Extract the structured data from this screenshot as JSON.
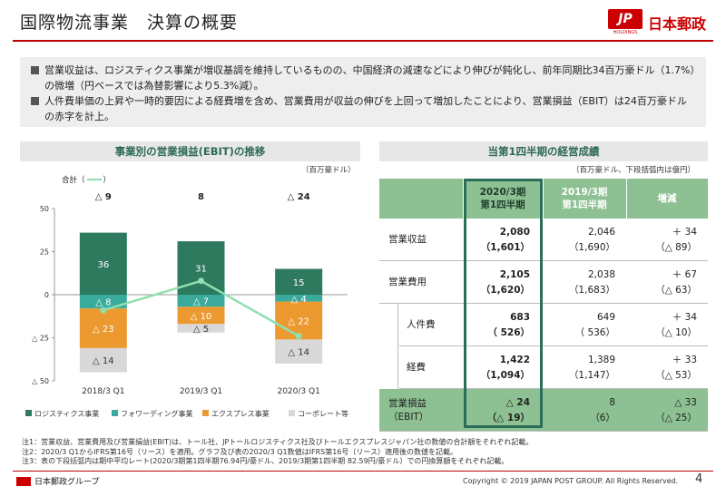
{
  "header": {
    "title": "国際物流事業　決算の概要",
    "logo_mark": "JP",
    "logo_sub": "HOLDINGS",
    "logo_text": "日本郵政"
  },
  "summary": [
    "営業収益は、ロジスティクス事業が増収基調を維持しているものの、中国経済の減速などにより伸びが鈍化し、前年同期比34百万豪ドル（1.7%）の微増（円ベースでは為替影響により5.3%減）。",
    "人件費単価の上昇や一時的要因による経費増を含め、営業費用が収益の伸びを上回って増加したことにより、営業損益（EBIT）は24百万豪ドルの赤字を計上。"
  ],
  "left_panel": {
    "title": "事業別の営業損益(EBIT)の推移",
    "unit": "（百万豪ドル）",
    "total_legend": "合計（",
    "total_legend_end": "）"
  },
  "chart_data": {
    "type": "bar",
    "stacked": true,
    "categories": [
      "2018/3 Q1",
      "2019/3 Q1",
      "2020/3 Q1"
    ],
    "series": [
      {
        "name": "ロジスティクス事業",
        "values": [
          36,
          31,
          15
        ],
        "labels": [
          "36",
          "31",
          "15"
        ],
        "color": "#2e7a5f"
      },
      {
        "name": "フォワーディング事業",
        "values": [
          -8,
          -7,
          -4
        ],
        "labels": [
          "△ 8",
          "△ 7",
          "△ 4"
        ],
        "color": "#3aaa9c"
      },
      {
        "name": "エクスプレス事業",
        "values": [
          -23,
          -10,
          -22
        ],
        "labels": [
          "△ 23",
          "△ 10",
          "△ 22"
        ],
        "color": "#ec9a30"
      },
      {
        "name": "コーポレート等",
        "values": [
          -14,
          -5,
          -14
        ],
        "labels": [
          "△ 14",
          "△ 5",
          "△ 14"
        ],
        "color": "#d8d8d8"
      }
    ],
    "total": {
      "name": "合計",
      "values": [
        -9,
        8,
        -24
      ],
      "labels": [
        "△ 9",
        "8",
        "△ 24"
      ],
      "color": "#8fe0b0"
    },
    "ylim": [
      -50,
      50
    ],
    "yticks": [
      50,
      25,
      0,
      -25,
      -50
    ],
    "ytick_labels": [
      "50",
      "25",
      "0",
      "△ 25",
      "△ 50"
    ]
  },
  "right_panel": {
    "title": "当第1四半期の経営成績",
    "unit": "（百万豪ドル、下段括弧内は億円）",
    "columns": [
      "2020/3期\n第1四半期",
      "2019/3期\n第1四半期",
      "増減"
    ],
    "rows": [
      {
        "label": "営業収益",
        "cur": "2,080",
        "cur_yen": "（1,601）",
        "prev": "2,046",
        "prev_yen": "（1,690）",
        "chg": "＋ 34",
        "chg_yen": "（△ 89）"
      },
      {
        "label": "営業費用",
        "cur": "2,105",
        "cur_yen": "（1,620）",
        "prev": "2,038",
        "prev_yen": "（1,683）",
        "chg": "＋ 67",
        "chg_yen": "（△ 63）"
      },
      {
        "label": "人件費",
        "cur": "683",
        "cur_yen": "（ 526）",
        "prev": "649",
        "prev_yen": "（ 536）",
        "chg": "＋ 34",
        "chg_yen": "（△ 10）"
      },
      {
        "label": "経費",
        "cur": "1,422",
        "cur_yen": "（1,094）",
        "prev": "1,389",
        "prev_yen": "（1,147）",
        "chg": "＋ 33",
        "chg_yen": "（△ 53）"
      },
      {
        "label": "営業損益\n（EBIT）",
        "cur": "△ 24",
        "cur_yen": "（△ 19）",
        "prev": "8",
        "prev_yen": "（6）",
        "chg": "△ 33",
        "chg_yen": "（△ 25）"
      }
    ]
  },
  "footnotes": [
    "注1：営業収益、営業費用及び営業損益(EBIT)は、トール社、JPトールロジスティクス社及びトールエクスプレスジャパン社の数値の合計額をそれぞれ記載。",
    "注2：2020/3 Q1からIFRS第16号（リース）を適用。グラフ及び表の2020/3 Q1数値はIFRS第16号（リース）適用後の数値を記載。",
    "注3：表の下段括弧内は期中平均レート(2020/3期第1四半期76.94円/豪ドル、2019/3期第1四半期 82.59円/豪ドル）での円換算額をそれぞれ記載。"
  ],
  "footer": {
    "group_logo_text": "日本郵政グループ",
    "copyright": "Copyright © 2019 JAPAN POST GROUP. All Rights Reserved.",
    "page": "4"
  }
}
